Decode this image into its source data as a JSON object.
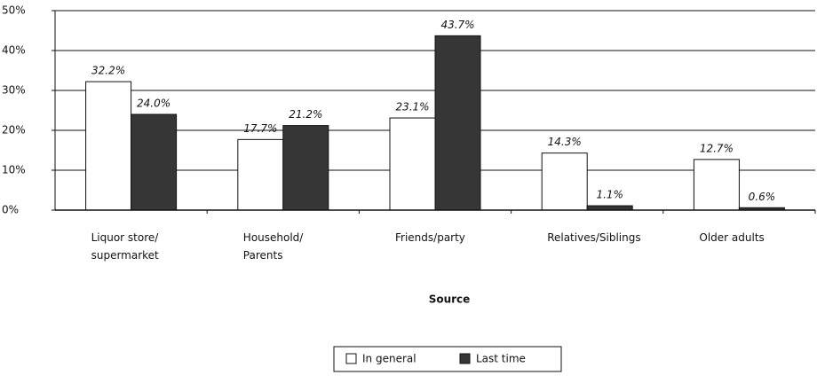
{
  "chart_data": {
    "type": "bar",
    "x_label": "Source",
    "categories": [
      "Liquor store/\nsupermarket",
      "Household/\nParents",
      "Friends/party",
      "Relatives/Siblings",
      "Older adults"
    ],
    "series": [
      {
        "name": "In general",
        "color": "#ffffff",
        "values": [
          32.2,
          17.7,
          23.1,
          14.3,
          12.7
        ],
        "value_labels": [
          "32.2%",
          "17.7%",
          "23.1%",
          "14.3%",
          "12.7%"
        ]
      },
      {
        "name": "Last time",
        "color": "#363636",
        "values": [
          24.0,
          21.2,
          43.7,
          1.1,
          0.6
        ],
        "value_labels": [
          "24.0%",
          "21.2%",
          "43.7%",
          "1.1%",
          "0.6%"
        ]
      }
    ],
    "ylim": [
      0,
      50
    ],
    "yticks": [
      {
        "value": 0,
        "label": "0%"
      },
      {
        "value": 10,
        "label": "10%"
      },
      {
        "value": 20,
        "label": "20%"
      },
      {
        "value": 30,
        "label": "30%"
      },
      {
        "value": 40,
        "label": "40%"
      },
      {
        "value": 50,
        "label": "50%"
      }
    ],
    "grid": true
  }
}
